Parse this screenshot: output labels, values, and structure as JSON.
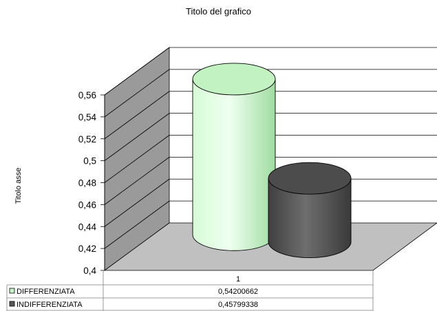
{
  "chart_data": {
    "type": "bar",
    "title": "Titolo del grafico",
    "ylabel": "Titolo asse",
    "xlabel": "",
    "categories": [
      "1"
    ],
    "ylim": [
      0.4,
      0.56
    ],
    "ytick_step": 0.02,
    "ytick_labels": [
      "0,4",
      "0,42",
      "0,44",
      "0,46",
      "0,48",
      "0,5",
      "0,52",
      "0,54",
      "0,56"
    ],
    "grid": true,
    "legend": "data-table-below",
    "series": [
      {
        "name": "DIFFERENZIATA",
        "values": [
          0.54200662
        ],
        "display": "0,54200662",
        "color": "#c6f6c6"
      },
      {
        "name": "INDIFFERENZIATA",
        "values": [
          0.45799338
        ],
        "display": "0,45799338",
        "color": "#5a5a5a"
      }
    ]
  }
}
